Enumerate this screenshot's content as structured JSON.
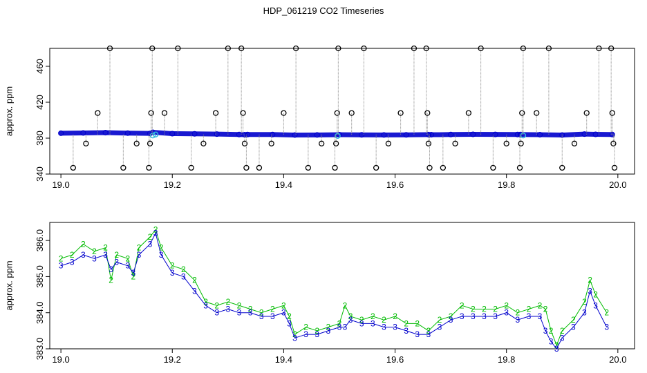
{
  "title": "HDP_061219  CO2 Timeseries",
  "chart_data": [
    {
      "type": "scatter",
      "panel": "top",
      "title": "",
      "xlabel": "",
      "ylabel": "approx. ppm",
      "xlim": [
        18.98,
        20.03
      ],
      "ylim": [
        340,
        480
      ],
      "xticks": [
        19.0,
        19.2,
        19.4,
        19.6,
        19.8,
        20.0
      ],
      "xtick_labels": [
        "19.0",
        "19.2",
        "19.4",
        "19.6",
        "19.8",
        "20.0"
      ],
      "yticks": [
        340,
        380,
        420,
        460
      ],
      "ytick_labels": [
        "340",
        "380",
        "420",
        "460"
      ],
      "grid": false,
      "colors": {
        "baseline": "#0000cc",
        "highlight": "#33bbdd",
        "spike": "#000000",
        "spike_line": "#888888"
      },
      "baseline_segments": [
        {
          "x": [
            19.0,
            19.04,
            19.08,
            19.12,
            19.16
          ],
          "y": [
            385.5,
            385.8,
            386.2,
            385.6,
            385.3
          ]
        },
        {
          "x": [
            19.165,
            19.2,
            19.24,
            19.28,
            19.32,
            19.33
          ],
          "y": [
            386.5,
            385.0,
            384.8,
            384.5,
            384.0,
            383.8
          ]
        },
        {
          "x": [
            19.335,
            19.38,
            19.42,
            19.46,
            19.5,
            19.54,
            19.58,
            19.62,
            19.66
          ],
          "y": [
            384.0,
            384.0,
            383.5,
            383.6,
            383.8,
            383.7,
            383.6,
            383.7,
            383.9
          ]
        },
        {
          "x": [
            19.665,
            19.7,
            19.74,
            19.78,
            19.82
          ],
          "y": [
            383.8,
            384.0,
            384.2,
            384.1,
            384.0
          ]
        },
        {
          "x": [
            19.825,
            19.86,
            19.9,
            19.94,
            19.96,
            19.99
          ],
          "y": [
            384.0,
            383.8,
            383.5,
            384.5,
            384.2,
            384.0
          ]
        }
      ],
      "highlight_points": [
        {
          "x": 19.165,
          "y": 383.0
        },
        {
          "x": 19.17,
          "y": 384.0
        },
        {
          "x": 19.497,
          "y": 382.5
        },
        {
          "x": 19.83,
          "y": 383.0
        }
      ],
      "spikes": [
        {
          "x": 19.022,
          "y": 347
        },
        {
          "x": 19.045,
          "y": 374
        },
        {
          "x": 19.066,
          "y": 408
        },
        {
          "x": 19.088,
          "y": 480
        },
        {
          "x": 19.112,
          "y": 347
        },
        {
          "x": 19.136,
          "y": 374
        },
        {
          "x": 19.158,
          "y": 347
        },
        {
          "x": 19.16,
          "y": 374
        },
        {
          "x": 19.162,
          "y": 408
        },
        {
          "x": 19.164,
          "y": 480
        },
        {
          "x": 19.186,
          "y": 408
        },
        {
          "x": 19.21,
          "y": 480
        },
        {
          "x": 19.234,
          "y": 347
        },
        {
          "x": 19.256,
          "y": 374
        },
        {
          "x": 19.278,
          "y": 408
        },
        {
          "x": 19.3,
          "y": 480
        },
        {
          "x": 19.324,
          "y": 480
        },
        {
          "x": 19.327,
          "y": 408
        },
        {
          "x": 19.33,
          "y": 374
        },
        {
          "x": 19.333,
          "y": 347
        },
        {
          "x": 19.356,
          "y": 347
        },
        {
          "x": 19.378,
          "y": 374
        },
        {
          "x": 19.4,
          "y": 408
        },
        {
          "x": 19.422,
          "y": 480
        },
        {
          "x": 19.444,
          "y": 347
        },
        {
          "x": 19.468,
          "y": 374
        },
        {
          "x": 19.492,
          "y": 347
        },
        {
          "x": 19.494,
          "y": 374
        },
        {
          "x": 19.496,
          "y": 408
        },
        {
          "x": 19.498,
          "y": 480
        },
        {
          "x": 19.522,
          "y": 408
        },
        {
          "x": 19.544,
          "y": 480
        },
        {
          "x": 19.566,
          "y": 347
        },
        {
          "x": 19.588,
          "y": 374
        },
        {
          "x": 19.61,
          "y": 408
        },
        {
          "x": 19.634,
          "y": 480
        },
        {
          "x": 19.656,
          "y": 480
        },
        {
          "x": 19.658,
          "y": 408
        },
        {
          "x": 19.66,
          "y": 374
        },
        {
          "x": 19.662,
          "y": 347
        },
        {
          "x": 19.686,
          "y": 347
        },
        {
          "x": 19.708,
          "y": 374
        },
        {
          "x": 19.732,
          "y": 408
        },
        {
          "x": 19.754,
          "y": 480
        },
        {
          "x": 19.776,
          "y": 347
        },
        {
          "x": 19.8,
          "y": 374
        },
        {
          "x": 19.824,
          "y": 347
        },
        {
          "x": 19.826,
          "y": 374
        },
        {
          "x": 19.828,
          "y": 408
        },
        {
          "x": 19.83,
          "y": 480
        },
        {
          "x": 19.854,
          "y": 408
        },
        {
          "x": 19.876,
          "y": 480
        },
        {
          "x": 19.9,
          "y": 347
        },
        {
          "x": 19.922,
          "y": 374
        },
        {
          "x": 19.944,
          "y": 408
        },
        {
          "x": 19.966,
          "y": 480
        },
        {
          "x": 19.988,
          "y": 480
        },
        {
          "x": 19.99,
          "y": 408
        },
        {
          "x": 19.992,
          "y": 374
        },
        {
          "x": 19.994,
          "y": 347
        }
      ]
    },
    {
      "type": "scatter",
      "panel": "bottom",
      "title": "",
      "xlabel": "",
      "ylabel": "approx. ppm",
      "xlim": [
        18.98,
        20.03
      ],
      "ylim": [
        383.0,
        386.5
      ],
      "xticks": [
        19.0,
        19.2,
        19.4,
        19.6,
        19.8,
        20.0
      ],
      "xtick_labels": [
        "19.0",
        "19.2",
        "19.4",
        "19.6",
        "19.8",
        "20.0"
      ],
      "yticks": [
        383.0,
        384.0,
        385.0,
        386.0
      ],
      "ytick_labels": [
        "383.0",
        "384.0",
        "385.0",
        "386.0"
      ],
      "grid": false,
      "series": [
        {
          "marker": "2",
          "color": "#00bb00",
          "x": [
            19.0,
            19.02,
            19.04,
            19.06,
            19.08,
            19.09,
            19.1,
            19.12,
            19.13,
            19.14,
            19.16,
            19.17,
            19.18,
            19.2,
            19.22,
            19.24,
            19.26,
            19.28,
            19.3,
            19.32,
            19.34,
            19.36,
            19.38,
            19.4,
            19.41,
            19.42,
            19.44,
            19.46,
            19.48,
            19.5,
            19.51,
            19.52,
            19.54,
            19.56,
            19.58,
            19.6,
            19.62,
            19.64,
            19.66,
            19.68,
            19.7,
            19.72,
            19.74,
            19.76,
            19.78,
            19.8,
            19.82,
            19.84,
            19.86,
            19.87,
            19.88,
            19.89,
            19.9,
            19.92,
            19.94,
            19.95,
            19.96,
            19.98
          ],
          "y": [
            385.5,
            385.6,
            385.9,
            385.7,
            385.8,
            384.9,
            385.6,
            385.5,
            385.0,
            385.8,
            386.1,
            386.3,
            385.8,
            385.3,
            385.2,
            384.9,
            384.3,
            384.2,
            384.3,
            384.2,
            384.1,
            384.0,
            384.1,
            384.2,
            383.9,
            383.4,
            383.6,
            383.5,
            383.6,
            383.7,
            384.2,
            383.9,
            383.8,
            383.9,
            383.8,
            383.9,
            383.7,
            383.7,
            383.5,
            383.8,
            383.9,
            384.2,
            384.1,
            384.1,
            384.1,
            384.2,
            384.0,
            384.1,
            384.2,
            384.1,
            383.5,
            383.1,
            383.5,
            383.8,
            384.3,
            384.9,
            384.5,
            384.0
          ]
        },
        {
          "marker": "3",
          "color": "#0000cc",
          "x": [
            19.0,
            19.02,
            19.04,
            19.06,
            19.08,
            19.09,
            19.1,
            19.12,
            19.13,
            19.14,
            19.16,
            19.17,
            19.18,
            19.2,
            19.22,
            19.24,
            19.26,
            19.28,
            19.3,
            19.32,
            19.34,
            19.36,
            19.38,
            19.4,
            19.41,
            19.42,
            19.44,
            19.46,
            19.48,
            19.5,
            19.51,
            19.52,
            19.54,
            19.56,
            19.58,
            19.6,
            19.62,
            19.64,
            19.66,
            19.68,
            19.7,
            19.72,
            19.74,
            19.76,
            19.78,
            19.8,
            19.82,
            19.84,
            19.86,
            19.87,
            19.88,
            19.89,
            19.9,
            19.92,
            19.94,
            19.95,
            19.96,
            19.98
          ],
          "y": [
            385.3,
            385.4,
            385.6,
            385.5,
            385.6,
            385.2,
            385.4,
            385.3,
            385.1,
            385.6,
            385.9,
            386.2,
            385.6,
            385.1,
            385.0,
            384.6,
            384.2,
            384.0,
            384.1,
            384.0,
            384.0,
            383.9,
            383.9,
            384.0,
            383.7,
            383.3,
            383.4,
            383.4,
            383.5,
            383.6,
            383.6,
            383.8,
            383.7,
            383.7,
            383.6,
            383.6,
            383.5,
            383.4,
            383.4,
            383.6,
            383.8,
            383.9,
            383.9,
            383.9,
            383.9,
            384.0,
            383.8,
            383.9,
            383.9,
            383.5,
            383.2,
            383.0,
            383.3,
            383.6,
            384.0,
            384.6,
            384.2,
            383.6
          ]
        }
      ]
    }
  ]
}
